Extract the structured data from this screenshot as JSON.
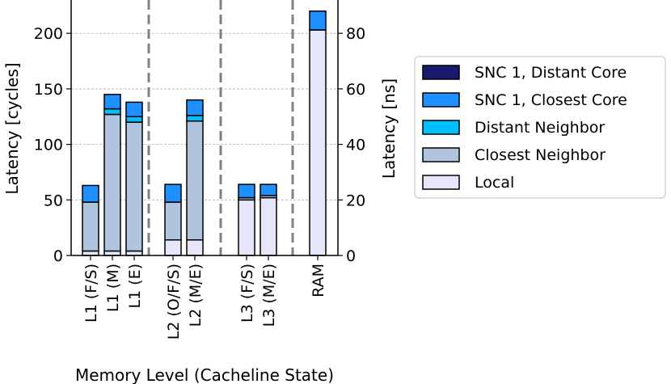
{
  "chart_data": {
    "type": "bar",
    "stacked": true,
    "categories": [
      "L1 (F/S)",
      "L1 (M)",
      "L1 (E)",
      "L2 (O/F/S)",
      "L2 (M/E)",
      "L3 (F/S)",
      "L3 (M/E)",
      "RAM"
    ],
    "series": [
      {
        "name": "Local",
        "color": "#e6e6fa",
        "values": [
          4,
          4,
          4,
          14,
          14,
          50,
          52,
          203
        ]
      },
      {
        "name": "Closest Neighbor",
        "color": "#b0c4de",
        "values": [
          44,
          123,
          116,
          34,
          107,
          2,
          2,
          0
        ]
      },
      {
        "name": "Distant Neighbor",
        "color": "#00bfff",
        "values": [
          0,
          5,
          5,
          0,
          5,
          0,
          0,
          0
        ]
      },
      {
        "name": "SNC 1, Closest Core",
        "color": "#1e90ff",
        "values": [
          15,
          13,
          13,
          16,
          14,
          12,
          10,
          17
        ]
      },
      {
        "name": "SNC 1, Distant Core",
        "color": "#191970",
        "values": [
          0,
          0,
          0,
          0,
          0,
          0,
          0,
          0
        ]
      }
    ],
    "legend_order": [
      "SNC 1, Distant Core",
      "SNC 1, Closest Core",
      "Distant Neighbor",
      "Closest Neighbor",
      "Local"
    ],
    "xlabel": "Memory Level (Cacheline State)",
    "ylabel": "Latency [cycles]",
    "ylabel_right": "Latency [ns]",
    "ylim": [
      0,
      230
    ],
    "yticks": [
      0,
      50,
      100,
      150,
      200
    ],
    "ylim_right": [
      0,
      92
    ],
    "yticks_right": [
      0,
      20,
      40,
      60,
      80
    ],
    "grid": "horizontal",
    "legend_position": "right",
    "group_separators": "dashed"
  }
}
